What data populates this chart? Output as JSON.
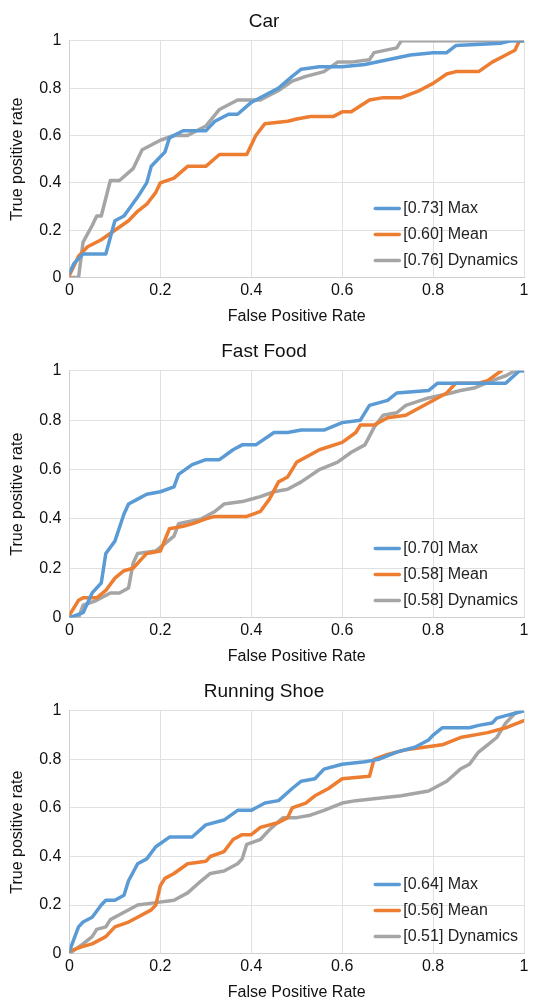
{
  "chart_data": [
    {
      "type": "line",
      "title": "Car",
      "xlabel": "False Positive Rate",
      "ylabel": "True positive rate",
      "xlim": [
        0,
        1
      ],
      "ylim": [
        0,
        1
      ],
      "xticks": [
        0,
        0.2,
        0.4,
        0.6,
        0.8,
        1
      ],
      "yticks": [
        0,
        0.2,
        0.4,
        0.6,
        0.8,
        1
      ],
      "grid": true,
      "legend": "bottom right",
      "marker": "none",
      "line_style": "solid",
      "series": [
        {
          "name": "[0.73] Max",
          "color": "#5b9bd5",
          "x": [
            0,
            0.01,
            0.03,
            0.08,
            0.1,
            0.12,
            0.15,
            0.17,
            0.18,
            0.2,
            0.21,
            0.22,
            0.25,
            0.3,
            0.32,
            0.35,
            0.37,
            0.4,
            0.43,
            0.46,
            0.49,
            0.51,
            0.55,
            0.6,
            0.65,
            0.7,
            0.75,
            0.8,
            0.83,
            0.85,
            0.95,
            0.97,
            1
          ],
          "values": [
            0.02,
            0.06,
            0.1,
            0.1,
            0.24,
            0.26,
            0.34,
            0.4,
            0.47,
            0.51,
            0.53,
            0.59,
            0.62,
            0.62,
            0.66,
            0.69,
            0.69,
            0.74,
            0.77,
            0.8,
            0.85,
            0.88,
            0.89,
            0.89,
            0.9,
            0.92,
            0.94,
            0.95,
            0.95,
            0.98,
            0.99,
            1,
            1
          ]
        },
        {
          "name": "[0.60] Mean",
          "color": "#ed7d31",
          "x": [
            0,
            0.02,
            0.04,
            0.07,
            0.1,
            0.13,
            0.15,
            0.17,
            0.19,
            0.2,
            0.23,
            0.26,
            0.3,
            0.33,
            0.39,
            0.41,
            0.43,
            0.48,
            0.5,
            0.53,
            0.58,
            0.6,
            0.62,
            0.66,
            0.69,
            0.73,
            0.77,
            0.8,
            0.83,
            0.85,
            0.9,
            0.93,
            0.96,
            0.98,
            0.99,
            1
          ],
          "values": [
            0.01,
            0.09,
            0.13,
            0.16,
            0.2,
            0.24,
            0.28,
            0.31,
            0.36,
            0.4,
            0.42,
            0.47,
            0.47,
            0.52,
            0.52,
            0.6,
            0.65,
            0.66,
            0.67,
            0.68,
            0.68,
            0.7,
            0.7,
            0.75,
            0.76,
            0.76,
            0.79,
            0.82,
            0.86,
            0.87,
            0.87,
            0.91,
            0.94,
            0.96,
            1,
            1
          ]
        },
        {
          "name": "[0.76] Dynamics",
          "color": "#a5a5a5",
          "x": [
            0,
            0.02,
            0.03,
            0.05,
            0.06,
            0.07,
            0.09,
            0.11,
            0.14,
            0.16,
            0.18,
            0.2,
            0.23,
            0.26,
            0.3,
            0.33,
            0.35,
            0.37,
            0.42,
            0.46,
            0.49,
            0.52,
            0.56,
            0.59,
            0.62,
            0.66,
            0.67,
            0.72,
            0.73,
            1
          ],
          "values": [
            0,
            0,
            0.15,
            0.22,
            0.26,
            0.26,
            0.41,
            0.41,
            0.46,
            0.54,
            0.56,
            0.58,
            0.6,
            0.6,
            0.64,
            0.71,
            0.73,
            0.75,
            0.75,
            0.79,
            0.83,
            0.85,
            0.87,
            0.91,
            0.91,
            0.92,
            0.95,
            0.97,
            1,
            1
          ]
        }
      ]
    },
    {
      "type": "line",
      "title": "Fast Food",
      "xlabel": "False Positive Rate",
      "ylabel": "True positive rate",
      "xlim": [
        0,
        1
      ],
      "ylim": [
        0,
        1
      ],
      "xticks": [
        0,
        0.2,
        0.4,
        0.6,
        0.8,
        1
      ],
      "yticks": [
        0,
        0.2,
        0.4,
        0.6,
        0.8,
        1
      ],
      "grid": true,
      "legend": "bottom right",
      "marker": "none",
      "line_style": "solid",
      "series": [
        {
          "name": "[0.70] Max",
          "color": "#5b9bd5",
          "x": [
            0,
            0.03,
            0.05,
            0.07,
            0.08,
            0.1,
            0.12,
            0.13,
            0.15,
            0.17,
            0.2,
            0.23,
            0.24,
            0.27,
            0.3,
            0.33,
            0.36,
            0.38,
            0.41,
            0.45,
            0.48,
            0.51,
            0.56,
            0.6,
            0.64,
            0.66,
            0.68,
            0.7,
            0.72,
            0.79,
            0.81,
            0.93,
            0.96,
            0.99,
            1
          ],
          "values": [
            0,
            0.02,
            0.1,
            0.14,
            0.26,
            0.31,
            0.42,
            0.46,
            0.48,
            0.5,
            0.51,
            0.53,
            0.58,
            0.62,
            0.64,
            0.64,
            0.68,
            0.7,
            0.7,
            0.75,
            0.75,
            0.76,
            0.76,
            0.79,
            0.8,
            0.86,
            0.87,
            0.88,
            0.91,
            0.92,
            0.95,
            0.95,
            0.95,
            1,
            1
          ]
        },
        {
          "name": "[0.58] Mean",
          "color": "#ed7d31",
          "x": [
            0,
            0.02,
            0.03,
            0.06,
            0.08,
            0.1,
            0.12,
            0.14,
            0.17,
            0.2,
            0.22,
            0.25,
            0.27,
            0.3,
            0.32,
            0.39,
            0.42,
            0.44,
            0.46,
            0.48,
            0.5,
            0.53,
            0.55,
            0.6,
            0.63,
            0.64,
            0.67,
            0.7,
            0.74,
            0.76,
            0.8,
            0.83,
            0.85,
            0.9,
            0.92,
            0.95
          ],
          "values": [
            0.01,
            0.07,
            0.08,
            0.08,
            0.11,
            0.16,
            0.19,
            0.2,
            0.26,
            0.27,
            0.36,
            0.37,
            0.38,
            0.4,
            0.41,
            0.41,
            0.43,
            0.48,
            0.55,
            0.57,
            0.63,
            0.66,
            0.68,
            0.71,
            0.75,
            0.78,
            0.78,
            0.81,
            0.82,
            0.84,
            0.88,
            0.91,
            0.95,
            0.95,
            0.96,
            1
          ]
        },
        {
          "name": "[0.58] Dynamics",
          "color": "#a5a5a5",
          "x": [
            0,
            0.02,
            0.03,
            0.06,
            0.09,
            0.11,
            0.13,
            0.14,
            0.15,
            0.19,
            0.21,
            0.23,
            0.24,
            0.29,
            0.32,
            0.34,
            0.38,
            0.42,
            0.45,
            0.48,
            0.51,
            0.55,
            0.59,
            0.62,
            0.65,
            0.67,
            0.69,
            0.72,
            0.74,
            0.79,
            0.84,
            0.86,
            0.89,
            0.93,
            0.96,
            0.98,
            1
          ],
          "values": [
            0,
            0,
            0.05,
            0.07,
            0.1,
            0.1,
            0.12,
            0.22,
            0.26,
            0.27,
            0.3,
            0.33,
            0.38,
            0.4,
            0.43,
            0.46,
            0.47,
            0.49,
            0.51,
            0.52,
            0.55,
            0.6,
            0.63,
            0.67,
            0.7,
            0.77,
            0.82,
            0.83,
            0.86,
            0.89,
            0.91,
            0.92,
            0.93,
            0.96,
            0.98,
            1,
            1
          ]
        }
      ]
    },
    {
      "type": "line",
      "title": "Running Shoe",
      "xlabel": "False Positive Rate",
      "ylabel": "True positive rate",
      "xlim": [
        0,
        1
      ],
      "ylim": [
        0,
        1
      ],
      "xticks": [
        0,
        0.2,
        0.4,
        0.6,
        0.8,
        1
      ],
      "yticks": [
        0,
        0.2,
        0.4,
        0.6,
        0.8,
        1
      ],
      "grid": true,
      "legend": "bottom right",
      "marker": "none",
      "line_style": "solid",
      "series": [
        {
          "name": "[0.64] Max",
          "color": "#5b9bd5",
          "x": [
            0,
            0.02,
            0.03,
            0.05,
            0.07,
            0.08,
            0.1,
            0.12,
            0.13,
            0.15,
            0.17,
            0.19,
            0.22,
            0.27,
            0.3,
            0.34,
            0.37,
            0.4,
            0.43,
            0.46,
            0.49,
            0.51,
            0.54,
            0.56,
            0.6,
            0.65,
            0.68,
            0.72,
            0.76,
            0.79,
            0.8,
            0.82,
            0.88,
            0.9,
            0.93,
            0.94,
            0.96,
            1
          ],
          "values": [
            0.01,
            0.11,
            0.13,
            0.15,
            0.2,
            0.22,
            0.22,
            0.24,
            0.3,
            0.37,
            0.39,
            0.44,
            0.48,
            0.48,
            0.53,
            0.55,
            0.59,
            0.59,
            0.62,
            0.63,
            0.68,
            0.71,
            0.72,
            0.76,
            0.78,
            0.79,
            0.8,
            0.83,
            0.85,
            0.88,
            0.9,
            0.93,
            0.93,
            0.94,
            0.95,
            0.97,
            0.98,
            1
          ]
        },
        {
          "name": "[0.56] Mean",
          "color": "#ed7d31",
          "x": [
            0,
            0.03,
            0.05,
            0.08,
            0.1,
            0.13,
            0.15,
            0.18,
            0.19,
            0.2,
            0.21,
            0.23,
            0.26,
            0.3,
            0.31,
            0.34,
            0.36,
            0.38,
            0.4,
            0.42,
            0.46,
            0.48,
            0.49,
            0.52,
            0.54,
            0.57,
            0.6,
            0.66,
            0.67,
            0.7,
            0.74,
            0.82,
            0.86,
            0.92,
            0.96,
            1
          ],
          "values": [
            0.01,
            0.03,
            0.04,
            0.07,
            0.11,
            0.13,
            0.15,
            0.18,
            0.2,
            0.28,
            0.31,
            0.33,
            0.37,
            0.38,
            0.4,
            0.42,
            0.47,
            0.49,
            0.49,
            0.52,
            0.54,
            0.56,
            0.6,
            0.62,
            0.65,
            0.68,
            0.72,
            0.73,
            0.8,
            0.82,
            0.84,
            0.86,
            0.89,
            0.91,
            0.93,
            0.96
          ]
        },
        {
          "name": "[0.51] Dynamics",
          "color": "#a5a5a5",
          "x": [
            0,
            0.03,
            0.05,
            0.06,
            0.08,
            0.09,
            0.11,
            0.15,
            0.19,
            0.23,
            0.26,
            0.29,
            0.31,
            0.34,
            0.37,
            0.38,
            0.39,
            0.42,
            0.44,
            0.47,
            0.5,
            0.53,
            0.56,
            0.6,
            0.63,
            0.68,
            0.73,
            0.79,
            0.83,
            0.86,
            0.88,
            0.9,
            0.92,
            0.94,
            0.96,
            0.98,
            1
          ],
          "values": [
            0,
            0.04,
            0.07,
            0.1,
            0.11,
            0.14,
            0.16,
            0.2,
            0.21,
            0.22,
            0.25,
            0.3,
            0.33,
            0.34,
            0.37,
            0.39,
            0.45,
            0.47,
            0.51,
            0.56,
            0.56,
            0.57,
            0.59,
            0.62,
            0.63,
            0.64,
            0.65,
            0.67,
            0.71,
            0.76,
            0.78,
            0.83,
            0.86,
            0.89,
            0.95,
            0.99,
            1
          ]
        }
      ]
    }
  ]
}
